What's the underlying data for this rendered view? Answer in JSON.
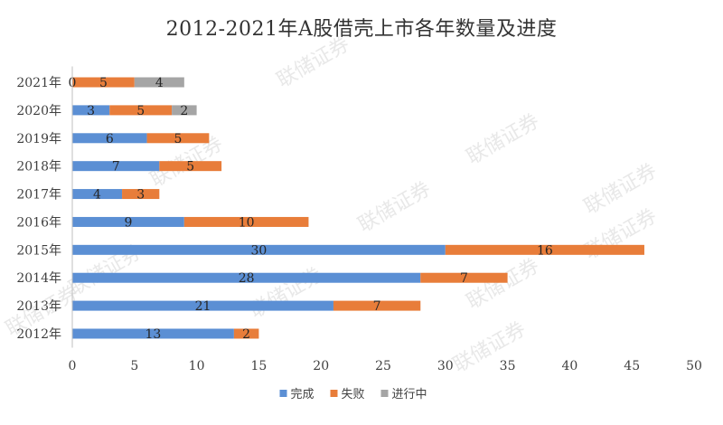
{
  "title": "2012-2021年A股借壳上市各年数量及进度",
  "colors": {
    "完成": "#5b8fd4",
    "失败": "#e87d3a",
    "进行中": "#a5a5a5"
  },
  "chart_data": {
    "type": "bar",
    "orientation": "horizontal",
    "stacked": true,
    "title": "2012-2021年A股借壳上市各年数量及进度",
    "categories": [
      "2012年",
      "2013年",
      "2014年",
      "2015年",
      "2016年",
      "2017年",
      "2018年",
      "2019年",
      "2020年",
      "2021年"
    ],
    "series": [
      {
        "name": "完成",
        "values": [
          13,
          21,
          28,
          30,
          9,
          4,
          7,
          6,
          3,
          0
        ]
      },
      {
        "name": "失败",
        "values": [
          2,
          7,
          7,
          16,
          10,
          3,
          5,
          5,
          5,
          5
        ]
      },
      {
        "name": "进行中",
        "values": [
          null,
          null,
          null,
          null,
          null,
          null,
          null,
          null,
          2,
          4
        ]
      }
    ],
    "xlim": [
      0,
      50
    ],
    "x_ticks": [
      0,
      5,
      10,
      15,
      20,
      25,
      30,
      35,
      40,
      45,
      50
    ],
    "grid": false,
    "legend_position": "bottom"
  },
  "watermark": "联储证券"
}
